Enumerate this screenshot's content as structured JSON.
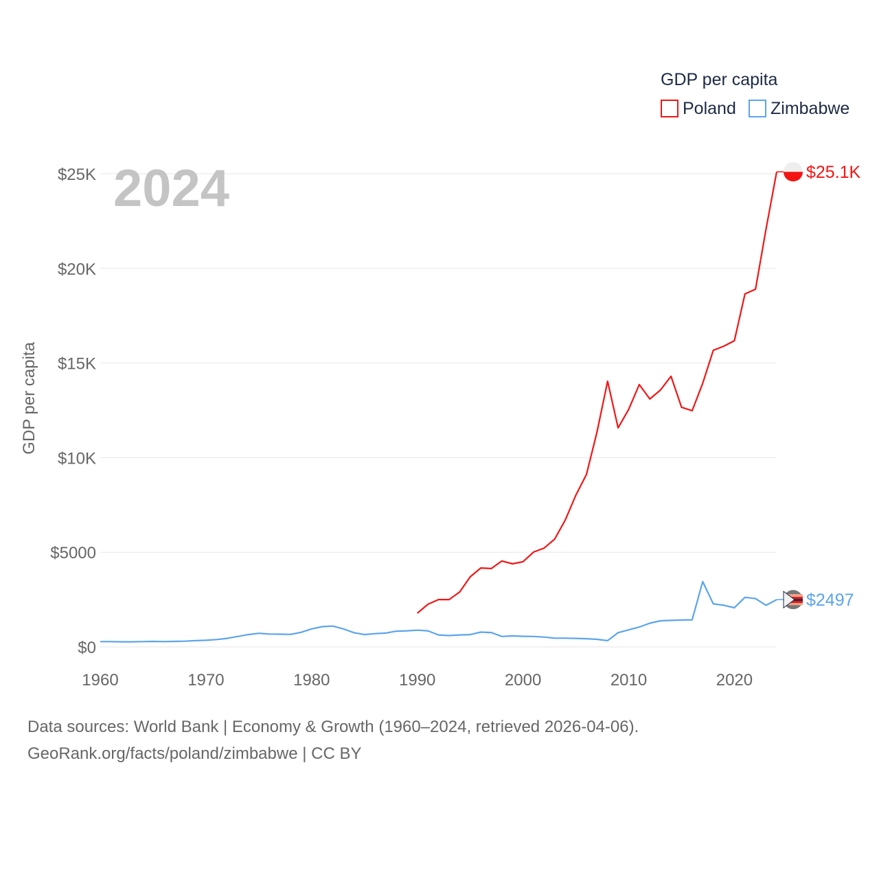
{
  "chart_data": {
    "type": "line",
    "title": "",
    "year_label": "2024",
    "ylabel": "GDP per capita",
    "xlabel": "",
    "xlim": [
      1960,
      2024
    ],
    "ylim": [
      0,
      25000
    ],
    "x_ticks": [
      "1960",
      "1970",
      "1980",
      "1990",
      "2000",
      "2010",
      "2020"
    ],
    "x_tick_values": [
      1960,
      1970,
      1980,
      1990,
      2000,
      2010,
      2020
    ],
    "y_ticks": [
      "$0",
      "$5000",
      "$10K",
      "$15K",
      "$20K",
      "$25K"
    ],
    "y_tick_values": [
      0,
      5000,
      10000,
      15000,
      20000,
      25000
    ],
    "grid": true,
    "legend": {
      "title": "GDP per capita",
      "placement": "top-right"
    },
    "series": [
      {
        "name": "Poland",
        "color": "#f41414",
        "end_label": "$25.1K",
        "start_year": 1990,
        "values": [
          1780,
          2250,
          2500,
          2500,
          2900,
          3700,
          4170,
          4140,
          4540,
          4390,
          4500,
          5010,
          5220,
          5700,
          6710,
          8020,
          9110,
          11360,
          14040,
          11570,
          12550,
          13860,
          13100,
          13570,
          14300,
          12660,
          12480,
          13930,
          15670,
          15890,
          16180,
          18650,
          18900,
          22100,
          25100
        ]
      },
      {
        "name": "Zimbabwe",
        "color": "#5ba4ea",
        "end_label": "$2497",
        "start_year": 1960,
        "values": [
          280,
          280,
          270,
          270,
          280,
          290,
          280,
          290,
          300,
          330,
          350,
          390,
          450,
          550,
          650,
          720,
          680,
          670,
          660,
          770,
          950,
          1070,
          1100,
          950,
          750,
          650,
          700,
          730,
          830,
          850,
          880,
          850,
          630,
          600,
          630,
          650,
          780,
          760,
          550,
          580,
          560,
          550,
          520,
          460,
          460,
          450,
          430,
          400,
          330,
          750,
          900,
          1050,
          1250,
          1380,
          1400,
          1420,
          1430,
          3450,
          2270,
          2200,
          2070,
          2620,
          2550,
          2200,
          2497
        ]
      }
    ]
  },
  "footer": {
    "line1": "Data sources: World Bank | Economy & Growth (1960–2024, retrieved 2026-04-06).",
    "line2": "GeoRank.org/facts/poland/zimbabwe | CC BY"
  }
}
